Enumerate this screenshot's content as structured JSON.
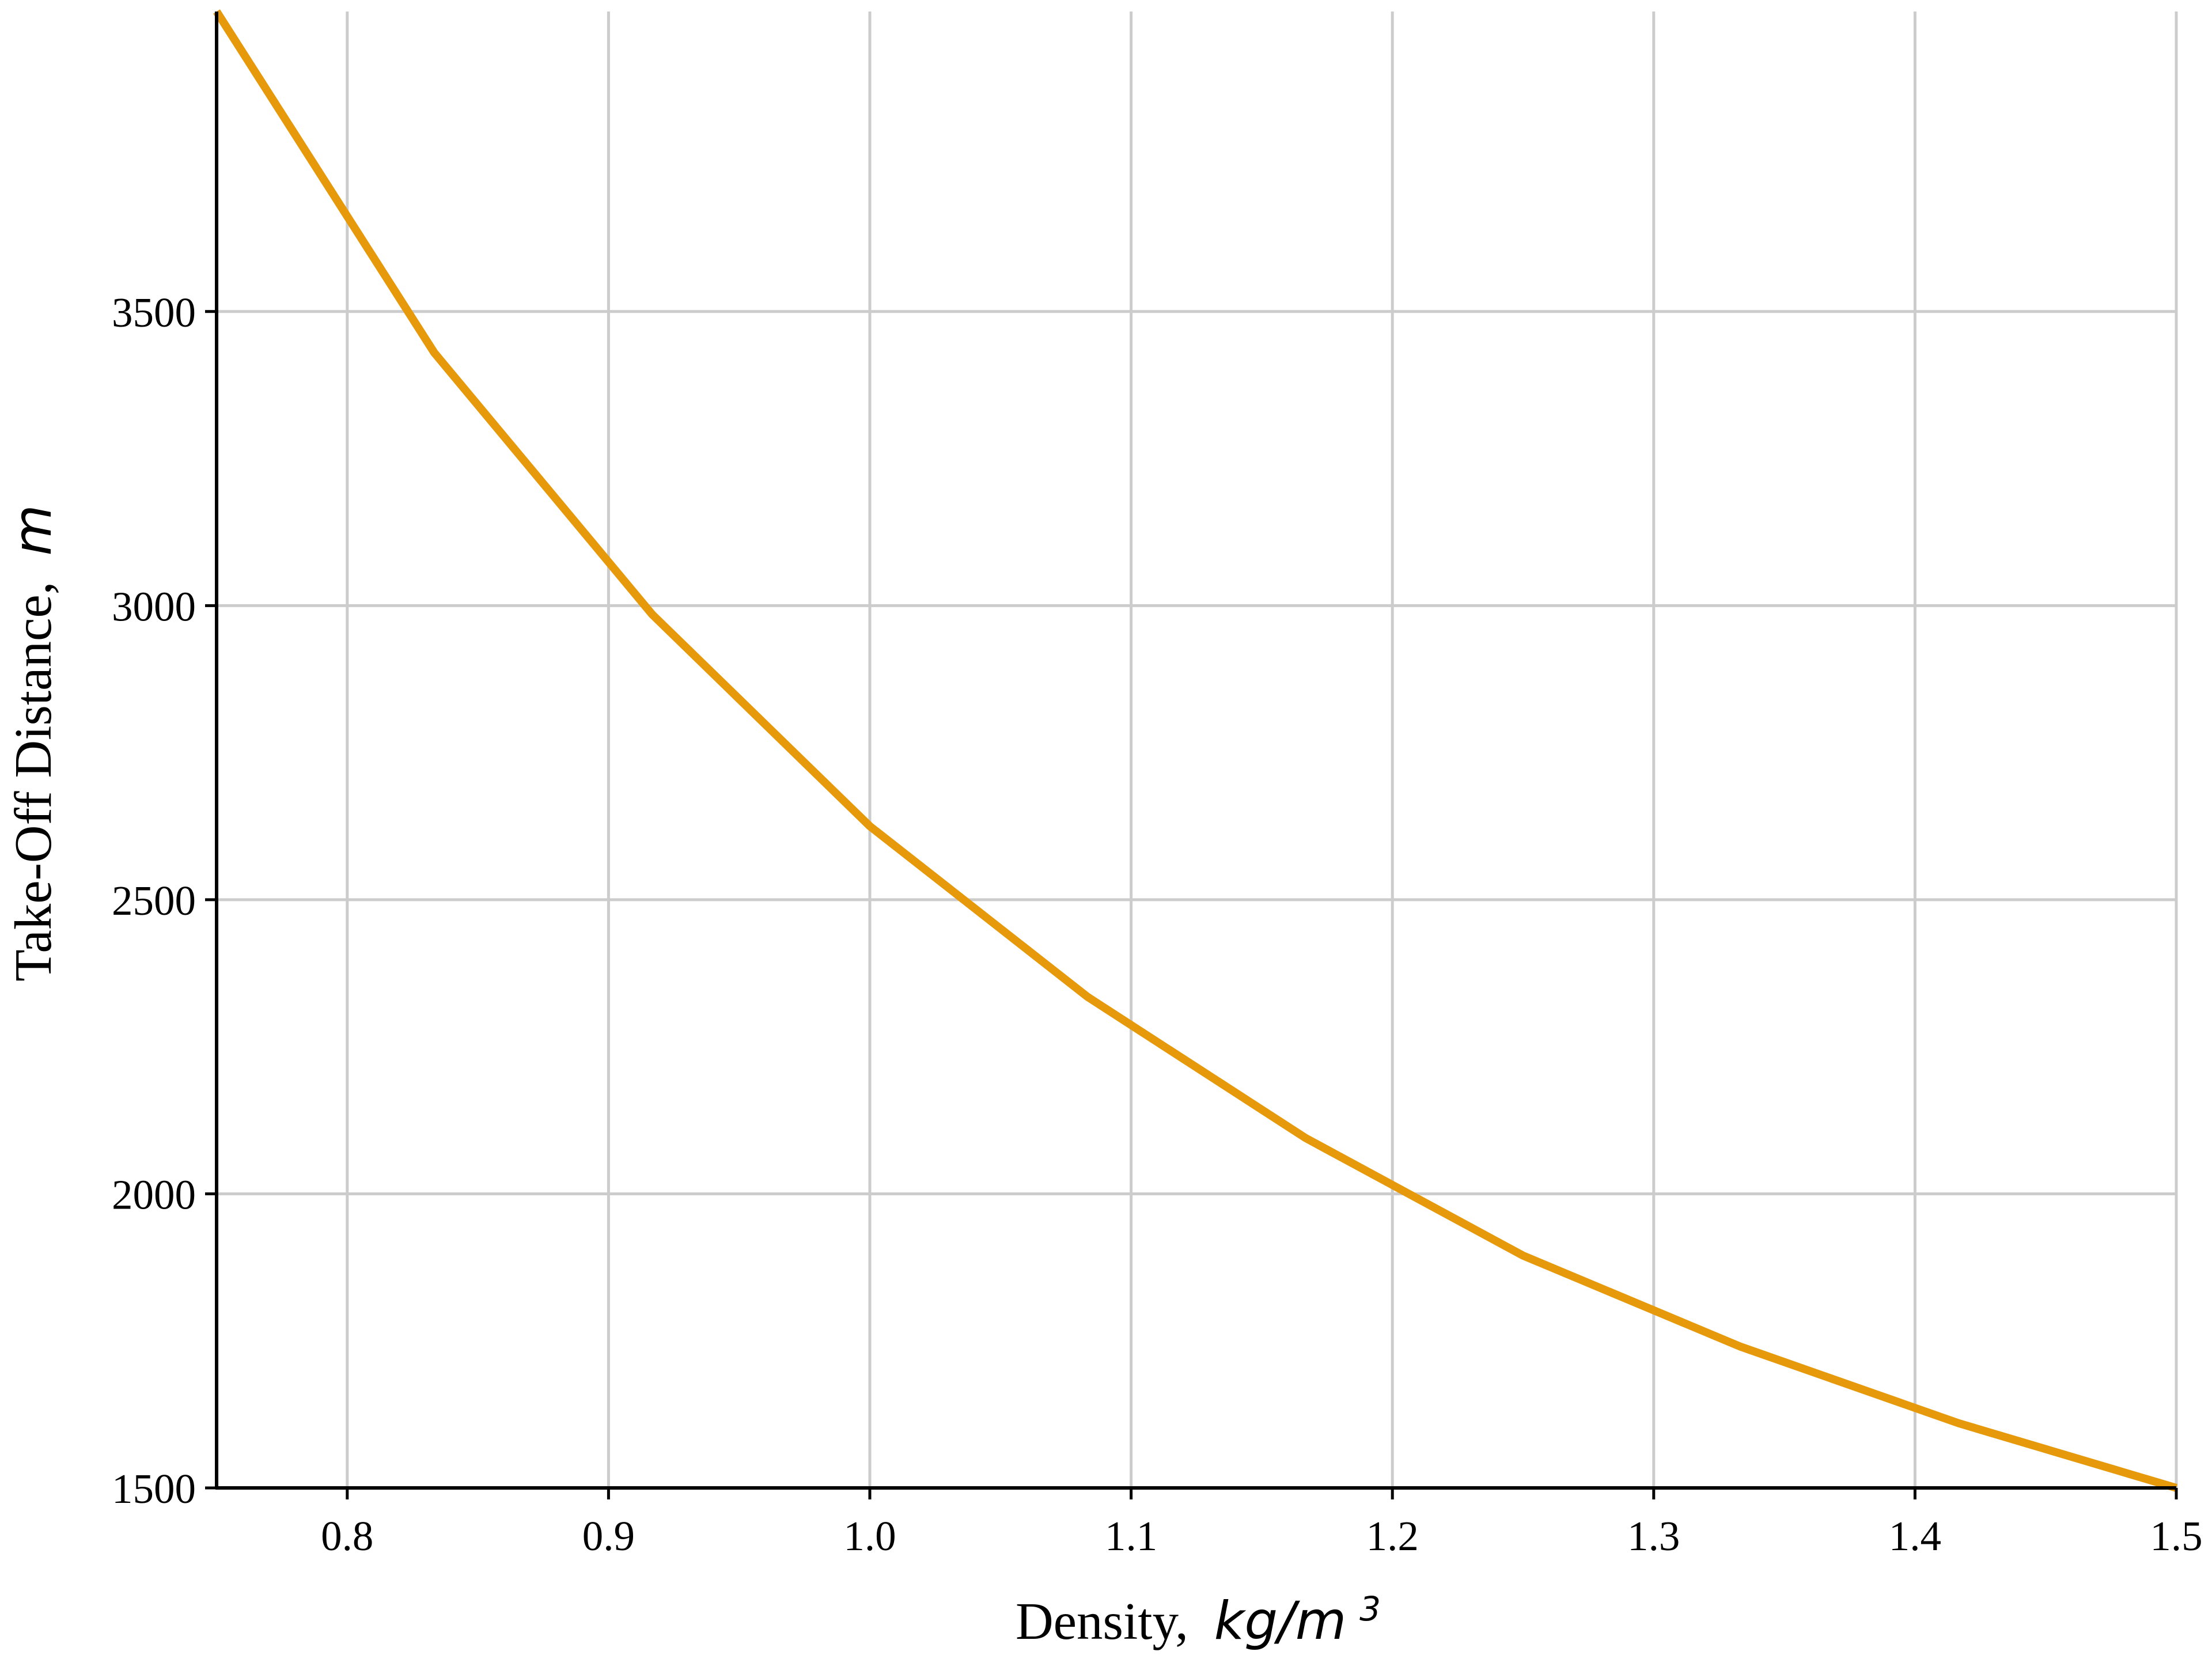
{
  "chart_data": {
    "type": "line",
    "title": "",
    "xlabel": "Density,",
    "xlabel_unit": "kg/m",
    "xlabel_unit_exponent": "3",
    "ylabel": "Take-Off Distance,",
    "ylabel_unit": "m",
    "xlim": [
      0.75,
      1.5
    ],
    "ylim": [
      1500,
      4010
    ],
    "grid": true,
    "legend": "none",
    "x_ticks": [
      {
        "value": 0.8,
        "label": "0.8"
      },
      {
        "value": 0.9,
        "label": "0.9"
      },
      {
        "value": 1.0,
        "label": "1.0"
      },
      {
        "value": 1.1,
        "label": "1.1"
      },
      {
        "value": 1.2,
        "label": "1.2"
      },
      {
        "value": 1.3,
        "label": "1.3"
      },
      {
        "value": 1.4,
        "label": "1.4"
      },
      {
        "value": 1.5,
        "label": "1.5"
      }
    ],
    "y_ticks": [
      {
        "value": 1500,
        "label": "1500"
      },
      {
        "value": 2000,
        "label": "2000"
      },
      {
        "value": 2500,
        "label": "2500"
      },
      {
        "value": 3000,
        "label": "3000"
      },
      {
        "value": 3500,
        "label": "3500"
      }
    ],
    "series": [
      {
        "color": "#e69a0b",
        "x": [
          0.75,
          0.8333,
          0.9167,
          1.0,
          1.0833,
          1.1667,
          1.25,
          1.3333,
          1.4167,
          1.5
        ],
        "y": [
          4010,
          3430,
          2985,
          2625,
          2335,
          2095,
          1895,
          1740,
          1610,
          1500
        ]
      }
    ],
    "colors": {
      "line": "#e69a0b",
      "grid": "#cccccc",
      "axis": "#000000"
    }
  }
}
